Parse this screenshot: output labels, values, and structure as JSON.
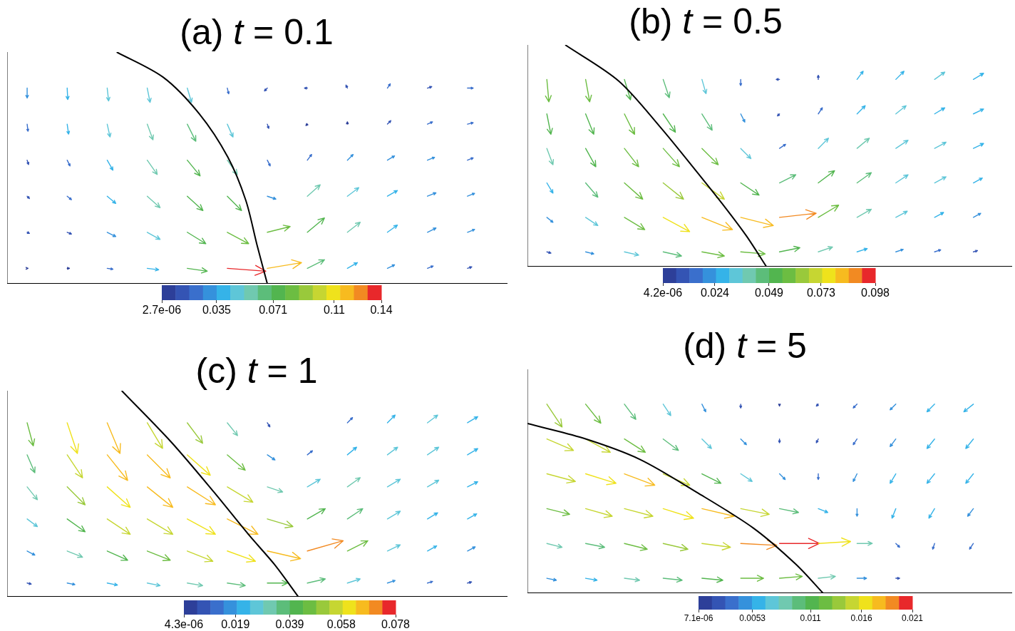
{
  "chart_data": [
    {
      "type": "quiver",
      "title": "(a) t = 0.1",
      "xlim": [
        0,
        1
      ],
      "ylim": [
        0,
        0.45
      ],
      "tick_labels": false,
      "grid": false,
      "x": [
        0.04,
        0.12,
        0.2,
        0.28,
        0.36,
        0.44,
        0.52,
        0.6,
        0.68,
        0.76,
        0.84,
        0.92
      ],
      "y": [
        0.03,
        0.1,
        0.17,
        0.24,
        0.31,
        0.38
      ],
      "u": [
        [
          0.003,
          0.008,
          0.02,
          0.04,
          0.07,
          0.135,
          0.12,
          0.06,
          0.035,
          0.025,
          0.02,
          0.015
        ],
        [
          0.008,
          0.015,
          0.03,
          0.045,
          0.065,
          0.075,
          0.08,
          0.06,
          0.045,
          0.035,
          0.03,
          0.025
        ],
        [
          0.008,
          0.015,
          0.03,
          0.045,
          0.055,
          0.05,
          0.03,
          0.045,
          0.04,
          0.035,
          0.03,
          0.025
        ],
        [
          0.005,
          0.01,
          0.02,
          0.035,
          0.045,
          0.035,
          0.01,
          0.015,
          0.02,
          0.025,
          0.025,
          0.02
        ],
        [
          0.003,
          0.005,
          0.01,
          0.02,
          0.03,
          0.02,
          0.005,
          -0.005,
          0,
          0.012,
          0.018,
          0.02
        ],
        [
          0,
          0.002,
          0.005,
          0.01,
          0.015,
          0.005,
          -0.01,
          -0.01,
          -0.005,
          0.01,
          0.015,
          0.02
        ]
      ],
      "v": [
        [
          0,
          0,
          -0.003,
          -0.005,
          -0.01,
          -0.01,
          0.02,
          0.03,
          0.02,
          0.012,
          0.008,
          0.005
        ],
        [
          -0.004,
          -0.006,
          -0.015,
          -0.025,
          -0.04,
          -0.04,
          0.02,
          0.05,
          0.035,
          0.025,
          0.015,
          0.01
        ],
        [
          -0.008,
          -0.012,
          -0.025,
          -0.04,
          -0.05,
          -0.05,
          -0.01,
          0.04,
          0.03,
          0.02,
          0.012,
          0.01
        ],
        [
          -0.015,
          -0.02,
          -0.035,
          -0.05,
          -0.055,
          -0.05,
          -0.02,
          0.02,
          0.02,
          0.015,
          0.01,
          0.008
        ],
        [
          -0.025,
          -0.035,
          -0.045,
          -0.055,
          -0.06,
          -0.045,
          -0.015,
          -0.005,
          0.008,
          0.012,
          0.008,
          0.005
        ],
        [
          -0.035,
          -0.04,
          -0.045,
          -0.05,
          -0.05,
          -0.02,
          -0.01,
          0,
          0.01,
          0.015,
          0.005,
          0
        ]
      ],
      "curve": {
        "x": [
          0.219,
          0.312,
          0.384,
          0.441,
          0.477,
          0.499,
          0.52
        ],
        "y": [
          0.45,
          0.401,
          0.33,
          0.246,
          0.162,
          0.077,
          0
        ],
        "color": "#000000"
      },
      "color_range": [
        2.7e-06,
        0.14
      ],
      "color_ticks": [
        {
          "value": 2.7e-06,
          "label": "2.7e-06"
        },
        0.035,
        0.071,
        0.11,
        0.14
      ]
    },
    {
      "type": "quiver",
      "title": "(b) t = 0.5",
      "xlim": [
        0,
        1
      ],
      "ylim": [
        0,
        0.45
      ],
      "tick_labels": false,
      "grid": false,
      "x": [
        0.04,
        0.12,
        0.2,
        0.28,
        0.36,
        0.44,
        0.52,
        0.6,
        0.68,
        0.76,
        0.84,
        0.92
      ],
      "y": [
        0.03,
        0.1,
        0.17,
        0.24,
        0.31,
        0.38
      ],
      "u": [
        [
          0.01,
          0.02,
          0.035,
          0.045,
          0.055,
          0.06,
          0.05,
          0.035,
          0.025,
          0.018,
          0.015,
          0.01
        ],
        [
          0.015,
          0.03,
          0.05,
          0.065,
          0.075,
          0.08,
          0.09,
          0.05,
          0.035,
          0.028,
          0.022,
          0.018
        ],
        [
          0.015,
          0.03,
          0.045,
          0.05,
          0.055,
          0.045,
          0.04,
          0.04,
          0.035,
          0.03,
          0.028,
          0.022
        ],
        [
          0.015,
          0.025,
          0.035,
          0.04,
          0.04,
          0.025,
          0.015,
          0.025,
          0.03,
          0.03,
          0.028,
          0.025
        ],
        [
          0.01,
          0.02,
          0.025,
          0.03,
          0.025,
          0.01,
          -0.005,
          0.01,
          0.02,
          0.025,
          0.025,
          0.025
        ],
        [
          0.005,
          0.01,
          0.015,
          0.015,
          0.01,
          0,
          -0.008,
          0,
          0.015,
          0.02,
          0.025,
          0.025
        ]
      ],
      "v": [
        [
          -0.003,
          -0.005,
          -0.008,
          -0.01,
          -0.01,
          -0.005,
          0.01,
          0.012,
          0.008,
          0.006,
          0.005,
          0.003
        ],
        [
          -0.012,
          -0.02,
          -0.03,
          -0.035,
          -0.03,
          -0.02,
          0.01,
          0.03,
          0.02,
          0.015,
          0.012,
          0.01
        ],
        [
          -0.025,
          -0.035,
          -0.04,
          -0.04,
          -0.04,
          -0.03,
          0.02,
          0.03,
          0.025,
          0.02,
          0.015,
          0.012
        ],
        [
          -0.04,
          -0.045,
          -0.045,
          -0.045,
          -0.04,
          -0.025,
          0.01,
          0.025,
          0.025,
          0.02,
          0.015,
          0.012
        ],
        [
          -0.05,
          -0.05,
          -0.05,
          -0.045,
          -0.04,
          -0.02,
          -0.005,
          0.015,
          0.02,
          0.02,
          0.015,
          0.012
        ],
        [
          -0.055,
          -0.055,
          -0.05,
          -0.045,
          -0.035,
          -0.015,
          0,
          0.01,
          0.02,
          0.02,
          0.018,
          0.015
        ]
      ],
      "curve": {
        "x": [
          0.078,
          0.188,
          0.276,
          0.349,
          0.408,
          0.452,
          0.493
        ],
        "y": [
          0.45,
          0.377,
          0.281,
          0.193,
          0.12,
          0.062,
          0
        ],
        "color": "#000000"
      },
      "color_range": [
        4.2e-06,
        0.098
      ],
      "color_ticks": [
        {
          "value": 4.2e-06,
          "label": "4.2e-06"
        },
        0.024,
        0.049,
        0.073,
        0.098
      ]
    },
    {
      "type": "quiver",
      "title": "(c) t = 1",
      "xlim": [
        0,
        1
      ],
      "ylim": [
        0,
        0.45
      ],
      "tick_labels": false,
      "grid": false,
      "x": [
        0.04,
        0.12,
        0.2,
        0.28,
        0.36,
        0.44,
        0.52,
        0.6,
        0.68,
        0.76,
        0.84,
        0.92
      ],
      "y": [
        0.03,
        0.1,
        0.17,
        0.24,
        0.31,
        0.38
      ],
      "u": [
        [
          0.008,
          0.015,
          0.02,
          0.025,
          0.03,
          0.035,
          0.04,
          0.035,
          0.025,
          0.015,
          0.01,
          0.008
        ],
        [
          0.015,
          0.03,
          0.04,
          0.045,
          0.05,
          0.055,
          0.065,
          0.07,
          0.04,
          0.025,
          0.018,
          0.015
        ],
        [
          0.02,
          0.035,
          0.045,
          0.05,
          0.055,
          0.06,
          0.05,
          0.035,
          0.03,
          0.025,
          0.02,
          0.018
        ],
        [
          0.02,
          0.035,
          0.045,
          0.05,
          0.055,
          0.05,
          0.03,
          0.025,
          0.025,
          0.025,
          0.022,
          0.02
        ],
        [
          0.015,
          0.03,
          0.04,
          0.045,
          0.045,
          0.035,
          0.015,
          0.01,
          0.018,
          0.02,
          0.022,
          0.02
        ],
        [
          0.012,
          0.02,
          0.025,
          0.03,
          0.03,
          0.02,
          0.005,
          0,
          0.01,
          0.015,
          0.02,
          0.02
        ]
      ],
      "v": [
        [
          -0.002,
          -0.003,
          -0.004,
          -0.005,
          -0.005,
          -0.005,
          0,
          0.008,
          0.008,
          0.005,
          0.003,
          0.002
        ],
        [
          -0.008,
          -0.012,
          -0.018,
          -0.018,
          -0.02,
          -0.02,
          -0.015,
          0.02,
          0.02,
          0.012,
          0.01,
          0.008
        ],
        [
          -0.015,
          -0.025,
          -0.03,
          -0.03,
          -0.03,
          -0.03,
          -0.015,
          0.02,
          0.02,
          0.015,
          0.012,
          0.01
        ],
        [
          -0.025,
          -0.035,
          -0.04,
          -0.04,
          -0.035,
          -0.03,
          -0.01,
          0.015,
          0.018,
          0.015,
          0.013,
          0.01
        ],
        [
          -0.035,
          -0.045,
          -0.05,
          -0.045,
          -0.04,
          -0.03,
          -0.01,
          0.008,
          0.015,
          0.015,
          0.015,
          0.012
        ],
        [
          -0.045,
          -0.06,
          -0.06,
          -0.05,
          -0.04,
          -0.025,
          -0.008,
          0,
          0.01,
          0.015,
          0.015,
          0.012
        ]
      ],
      "curve": {
        "x": [
          0.229,
          0.327,
          0.413,
          0.484,
          0.534,
          0.582
        ],
        "y": [
          0.45,
          0.339,
          0.229,
          0.134,
          0.071,
          0
        ],
        "color": "#000000"
      },
      "color_range": [
        4.3e-06,
        0.078
      ],
      "color_ticks": [
        {
          "value": 4.3e-06,
          "label": "4.3e-06"
        },
        0.019,
        0.039,
        0.058,
        0.078
      ]
    },
    {
      "type": "quiver",
      "title": "(d) t = 5",
      "xlim": [
        0,
        1
      ],
      "ylim": [
        0,
        0.45
      ],
      "tick_labels": false,
      "grid": false,
      "x": [
        0.04,
        0.12,
        0.2,
        0.28,
        0.36,
        0.44,
        0.52,
        0.6,
        0.68,
        0.76,
        0.84,
        0.92
      ],
      "y": [
        0.03,
        0.1,
        0.17,
        0.24,
        0.31,
        0.38
      ],
      "u": [
        [
          0.005,
          0.006,
          0.008,
          0.01,
          0.011,
          0.012,
          0.012,
          0.009,
          0.005,
          0.002,
          0,
          0
        ],
        [
          0.008,
          0.01,
          0.012,
          0.013,
          0.015,
          0.019,
          0.021,
          0.017,
          0.008,
          0.002,
          -0.001,
          -0.002
        ],
        [
          0.012,
          0.014,
          0.015,
          0.016,
          0.017,
          0.015,
          0.01,
          0.005,
          0,
          -0.002,
          -0.003,
          -0.003
        ],
        [
          0.015,
          0.016,
          0.016,
          0.014,
          0.01,
          0.006,
          0.003,
          0,
          -0.002,
          -0.003,
          -0.004,
          -0.004
        ],
        [
          0.014,
          0.013,
          0.011,
          0.008,
          0.005,
          0.003,
          0,
          -0.001,
          -0.002,
          -0.003,
          -0.004,
          -0.004
        ],
        [
          0.008,
          0.008,
          0.006,
          0.004,
          0.002,
          0,
          0,
          -0.001,
          -0.002,
          -0.003,
          -0.004,
          -0.005
        ]
      ],
      "v": [
        [
          -0.001,
          -0.001,
          -0.001,
          -0.001,
          -0.001,
          0,
          0.001,
          0.001,
          0,
          0,
          0,
          0
        ],
        [
          -0.002,
          -0.002,
          -0.003,
          -0.003,
          -0.002,
          -0.001,
          0,
          0.001,
          0,
          -0.002,
          -0.003,
          -0.003
        ],
        [
          -0.003,
          -0.004,
          -0.004,
          -0.005,
          -0.004,
          -0.003,
          -0.002,
          -0.002,
          -0.004,
          -0.005,
          -0.005,
          -0.004
        ],
        [
          -0.004,
          -0.005,
          -0.006,
          -0.006,
          -0.005,
          -0.004,
          -0.003,
          -0.003,
          -0.004,
          -0.005,
          -0.005,
          -0.005
        ],
        [
          -0.006,
          -0.007,
          -0.007,
          -0.006,
          -0.005,
          -0.003,
          -0.002,
          -0.002,
          -0.003,
          -0.004,
          -0.005,
          -0.005
        ],
        [
          -0.012,
          -0.01,
          -0.008,
          -0.006,
          -0.004,
          -0.002,
          -0.001,
          -0.001,
          -0.002,
          -0.003,
          -0.004,
          -0.004
        ]
      ],
      "curve": {
        "x": [
          0,
          0.114,
          0.232,
          0.349,
          0.466,
          0.554,
          0.61
        ],
        "y": [
          0.341,
          0.312,
          0.269,
          0.203,
          0.131,
          0.058,
          0
        ],
        "color": "#000000"
      },
      "color_range": [
        7.1e-06,
        0.021
      ],
      "color_ticks": [
        {
          "value": 7.1e-06,
          "label": "7.1e-06"
        },
        0.0053,
        0.011,
        0.016,
        0.021
      ]
    }
  ]
}
